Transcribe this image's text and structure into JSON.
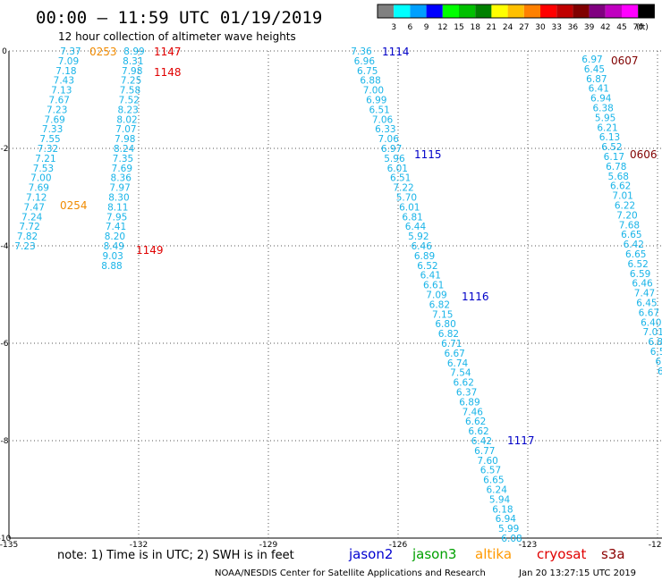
{
  "header": {
    "title": "00:00 – 11:59 UTC 01/19/2019",
    "subtitle": "12 hour collection of altimeter wave heights"
  },
  "legend": {
    "bins": [
      {
        "label": "3",
        "color": "#808080"
      },
      {
        "label": "6",
        "color": "#00ffff"
      },
      {
        "label": "9",
        "color": "#00a0ff"
      },
      {
        "label": "12",
        "color": "#0000ff"
      },
      {
        "label": "15",
        "color": "#00ff00"
      },
      {
        "label": "18",
        "color": "#00c000"
      },
      {
        "label": "21",
        "color": "#008000"
      },
      {
        "label": "24",
        "color": "#ffff00"
      },
      {
        "label": "27",
        "color": "#ffc000"
      },
      {
        "label": "30",
        "color": "#ff8000"
      },
      {
        "label": "33",
        "color": "#ff0000"
      },
      {
        "label": "36",
        "color": "#c00000"
      },
      {
        "label": "39",
        "color": "#800000"
      },
      {
        "label": "42",
        "color": "#800080"
      },
      {
        "label": "45",
        "color": "#c000c0"
      },
      {
        "label": "70",
        "color": "#ff00ff"
      },
      {
        "label": "",
        "color": "#000000"
      }
    ],
    "unit": "(ft)"
  },
  "axes": {
    "x_ticks": [
      "-135",
      "-132",
      "-129",
      "-126",
      "-123",
      "-120"
    ],
    "y_ticks": [
      "0",
      "-2",
      "-4",
      "-6",
      "-8",
      "-10"
    ]
  },
  "tracks": [
    {
      "value_color": "#19b4e8",
      "values": [
        "7.37",
        "7.09",
        "7.18",
        "7.43",
        "7.13",
        "7.67",
        "7.23",
        "7.69",
        "7.33",
        "7.55",
        "7.32",
        "7.21",
        "7.53",
        "7.00",
        "7.69",
        "7.12",
        "7.47",
        "7.24",
        "7.72",
        "7.82",
        "7.23"
      ],
      "labels": [
        {
          "text": "0253",
          "color": "#f08a00"
        },
        {
          "text": "0254",
          "color": "#f08a00"
        }
      ]
    },
    {
      "value_color": "#19b4e8",
      "values": [
        "8.99",
        "8.31",
        "7.98",
        "7.25",
        "7.58",
        "7.52",
        "8.23",
        "8.02",
        "7.07",
        "7.98",
        "8.24",
        "7.35",
        "7.69",
        "8.36",
        "7.97",
        "8.30",
        "8.11",
        "7.95",
        "7.41",
        "8.20",
        "8.49",
        "9.03",
        "8.88"
      ],
      "labels": [
        {
          "text": "1147",
          "color": "#e00000"
        },
        {
          "text": "1148",
          "color": "#e00000"
        },
        {
          "text": "1149",
          "color": "#e00000"
        }
      ]
    },
    {
      "value_color": "#19b4e8",
      "values": [
        "7.36",
        "6.96",
        "6.75",
        "6.88",
        "7.00",
        "6.99",
        "6.51",
        "7.06",
        "6.33",
        "7.06",
        "6.97",
        "5.96",
        "6.01",
        "6.51",
        "7.22",
        "5.70",
        "6.01",
        "6.81",
        "6.44",
        "5.92",
        "6.46",
        "6.89",
        "6.52",
        "6.41",
        "6.61",
        "7.09",
        "6.82",
        "7.15",
        "6.80",
        "6.82",
        "6.71",
        "6.67",
        "6.74",
        "7.54",
        "6.62",
        "6.37",
        "6.89",
        "7.46",
        "6.62",
        "6.62",
        "6.42",
        "6.77",
        "7.60",
        "6.57",
        "6.65",
        "6.24",
        "5.94",
        "6.18",
        "6.94",
        "5.99",
        "6.08"
      ],
      "labels": [
        {
          "text": "1114",
          "color": "#0000c8"
        },
        {
          "text": "1115",
          "color": "#0000c8"
        },
        {
          "text": "1116",
          "color": "#0000c8"
        },
        {
          "text": "1117",
          "color": "#0000c8"
        }
      ]
    },
    {
      "value_color": "#19b4e8",
      "values": [
        "6.97",
        "6.45",
        "6.87",
        "6.41",
        "6.94",
        "6.38",
        "5.95",
        "6.21",
        "6.13",
        "6.52",
        "6.17",
        "6.78",
        "5.68",
        "6.62",
        "7.01",
        "6.22",
        "7.20",
        "7.68",
        "6.65",
        "6.42",
        "6.65",
        "6.52",
        "6.59",
        "6.46",
        "7.47",
        "6.45",
        "6.67",
        "6.40",
        "7.01",
        "6.8",
        "6.5",
        "6.",
        "6."
      ],
      "labels": [
        {
          "text": "0607",
          "color": "#800000"
        },
        {
          "text": "0606",
          "color": "#800000"
        }
      ]
    }
  ],
  "footer": {
    "note": "note:  1) Time is in UTC;  2) SWH is in feet",
    "satellites": [
      {
        "name": "jason2",
        "color": "#0000d0"
      },
      {
        "name": "jason3",
        "color": "#00a000"
      },
      {
        "name": "altika",
        "color": "#ff9900"
      },
      {
        "name": "cryosat",
        "color": "#e00000"
      },
      {
        "name": "s3a",
        "color": "#8b0000"
      }
    ],
    "credit": "NOAA/NESDIS Center for Satellite Applications and Research",
    "timestamp": "Jan 20 13:27:15 UTC 2019"
  }
}
